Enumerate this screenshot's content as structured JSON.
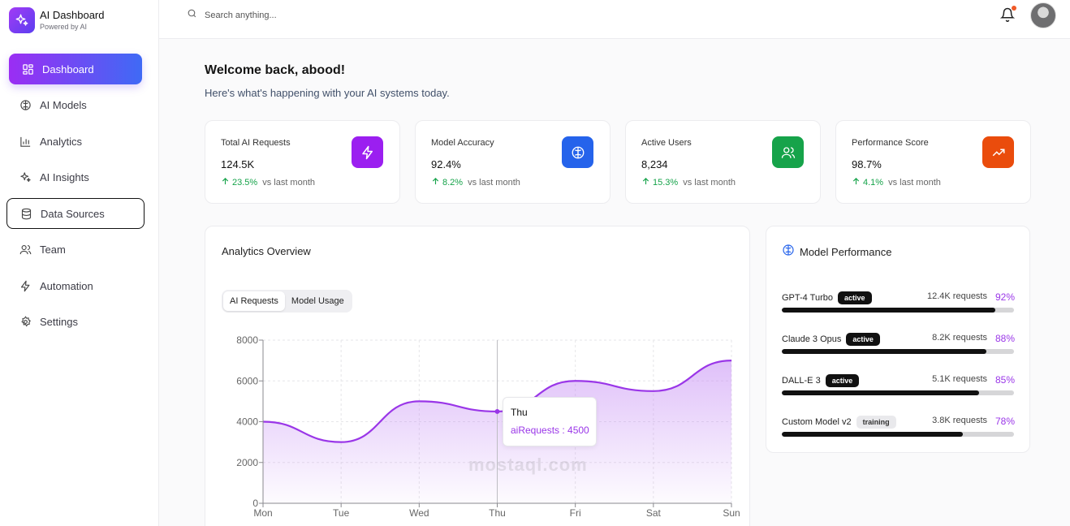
{
  "brand": {
    "title": "AI Dashboard",
    "subtitle": "Powered by AI"
  },
  "sidebar": {
    "items": [
      {
        "label": "Dashboard",
        "icon": "grid-icon"
      },
      {
        "label": "AI Models",
        "icon": "brain-icon"
      },
      {
        "label": "Analytics",
        "icon": "bar-chart-icon"
      },
      {
        "label": "AI Insights",
        "icon": "sparkles-icon"
      },
      {
        "label": "Data Sources",
        "icon": "database-icon"
      },
      {
        "label": "Team",
        "icon": "users-icon"
      },
      {
        "label": "Automation",
        "icon": "lightning-icon"
      },
      {
        "label": "Settings",
        "icon": "gear-icon"
      }
    ]
  },
  "topbar": {
    "search_placeholder": "Search anything..."
  },
  "welcome": {
    "title": "Welcome back, abood!",
    "subtitle": "Here's what's happening with your AI systems today."
  },
  "stats": [
    {
      "label": "Total AI Requests",
      "value": "124.5K",
      "change": "23.5%",
      "vs": "vs last month",
      "color": "#9b1ff0",
      "icon": "lightning-icon"
    },
    {
      "label": "Model Accuracy",
      "value": "92.4%",
      "change": "8.2%",
      "vs": "vs last month",
      "color": "#2563eb",
      "icon": "brain-icon"
    },
    {
      "label": "Active Users",
      "value": "8,234",
      "change": "15.3%",
      "vs": "vs last month",
      "color": "#16a34a",
      "icon": "users-icon"
    },
    {
      "label": "Performance Score",
      "value": "98.7%",
      "change": "4.1%",
      "vs": "vs last month",
      "color": "#ea4c0c",
      "icon": "trending-up-icon"
    }
  ],
  "analytics": {
    "title": "Analytics Overview",
    "tabs": [
      "AI Requests",
      "Model Usage"
    ],
    "tooltip": {
      "day": "Thu",
      "text": "aiRequests : 4500"
    }
  },
  "chart_data": {
    "type": "area",
    "categories": [
      "Mon",
      "Tue",
      "Wed",
      "Thu",
      "Fri",
      "Sat",
      "Sun"
    ],
    "series": [
      {
        "name": "aiRequests",
        "values": [
          4000,
          3000,
          5000,
          4500,
          6000,
          5500,
          7000
        ]
      }
    ],
    "ylim": [
      0,
      8000
    ],
    "yticks": [
      0,
      2000,
      4000,
      6000,
      8000
    ],
    "grid": true,
    "color": "#9a36e8"
  },
  "models": {
    "title": "Model Performance",
    "items": [
      {
        "name": "GPT-4 Turbo",
        "status": "active",
        "requests": "12.4K requests",
        "pct": "92%",
        "value": 92
      },
      {
        "name": "Claude 3 Opus",
        "status": "active",
        "requests": "8.2K requests",
        "pct": "88%",
        "value": 88
      },
      {
        "name": "DALL-E 3",
        "status": "active",
        "requests": "5.1K requests",
        "pct": "85%",
        "value": 85
      },
      {
        "name": "Custom Model v2",
        "status": "training",
        "requests": "3.8K requests",
        "pct": "78%",
        "value": 78
      }
    ]
  },
  "watermark": "mostaql.com"
}
